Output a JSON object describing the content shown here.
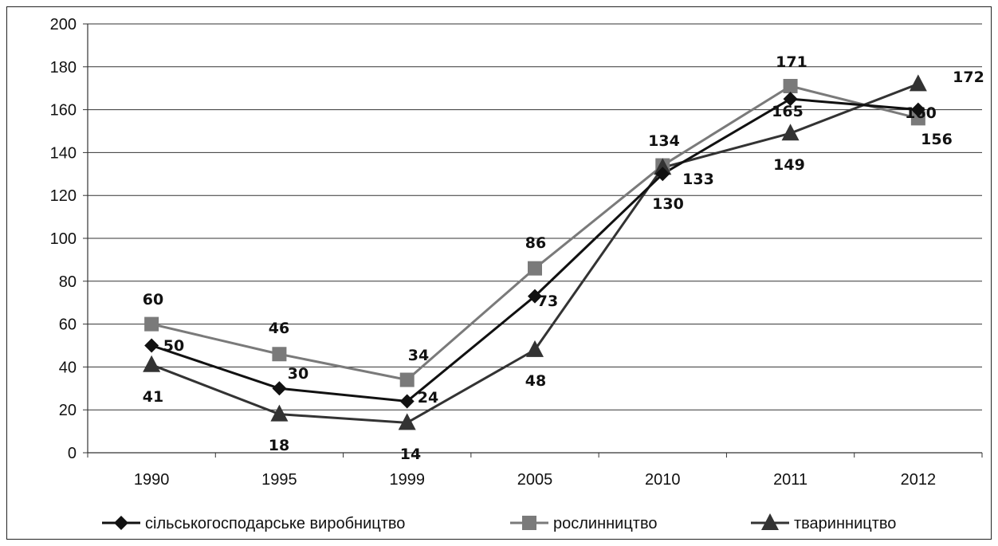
{
  "chart_data": {
    "type": "line",
    "title": "",
    "xlabel": "",
    "ylabel": "",
    "categories": [
      "1990",
      "1995",
      "1999",
      "2005",
      "2010",
      "2011",
      "2012"
    ],
    "ylim": [
      0,
      200
    ],
    "yticks": [
      "0",
      "20",
      "40",
      "60",
      "80",
      "100",
      "120",
      "140",
      "160",
      "180",
      "200"
    ],
    "grid": true,
    "legend_position": "bottom",
    "series": [
      {
        "name": "сільськогосподарське виробництво",
        "marker": "diamond",
        "color": "#111111",
        "values": [
          50,
          30,
          24,
          73,
          130,
          165,
          160
        ],
        "labels": [
          "50",
          "30",
          "24",
          "73",
          "130",
          "165",
          "160"
        ]
      },
      {
        "name": "рослинництво",
        "marker": "square",
        "color": "#7a7a7a",
        "values": [
          60,
          46,
          34,
          86,
          134,
          171,
          156
        ],
        "labels": [
          "60",
          "46",
          "34",
          "86",
          "134",
          "171",
          "156"
        ]
      },
      {
        "name": "тваринництво",
        "marker": "triangle",
        "color": "#333333",
        "values": [
          41,
          18,
          14,
          48,
          133,
          149,
          172
        ],
        "labels": [
          "41",
          "18",
          "14",
          "48",
          "133",
          "149",
          "172"
        ]
      }
    ]
  }
}
